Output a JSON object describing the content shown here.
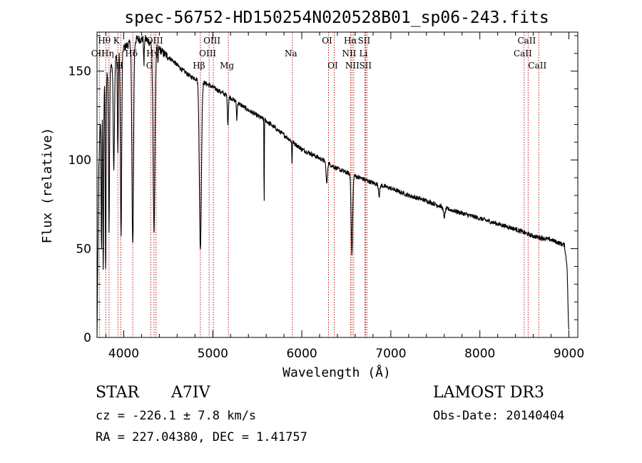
{
  "chart_data": {
    "type": "line",
    "title": "spec-56752-HD150254N020528B01_sp06-243.fits",
    "xlabel": "Wavelength (Å)",
    "ylabel": "Flux (relative)",
    "xlim": [
      3700,
      9100
    ],
    "ylim": [
      0,
      172
    ],
    "xticks": [
      4000,
      5000,
      6000,
      7000,
      8000,
      9000
    ],
    "yticks": [
      0,
      50,
      100,
      150
    ],
    "continuum": [
      [
        3700,
        0
      ],
      [
        3710,
        48
      ],
      [
        3720,
        95
      ],
      [
        3740,
        125
      ],
      [
        3760,
        132
      ],
      [
        3780,
        140
      ],
      [
        3800,
        145
      ],
      [
        3850,
        152
      ],
      [
        3900,
        157
      ],
      [
        3950,
        160
      ],
      [
        4000,
        163
      ],
      [
        4050,
        165
      ],
      [
        4150,
        168
      ],
      [
        4250,
        168
      ],
      [
        4300,
        166
      ],
      [
        4350,
        165
      ],
      [
        4450,
        160
      ],
      [
        4550,
        156
      ],
      [
        4650,
        151
      ],
      [
        4750,
        147
      ],
      [
        4850,
        145
      ],
      [
        5000,
        141
      ],
      [
        5200,
        135
      ],
      [
        5400,
        128
      ],
      [
        5600,
        122
      ],
      [
        5800,
        114
      ],
      [
        6000,
        106
      ],
      [
        6200,
        101
      ],
      [
        6400,
        95
      ],
      [
        6600,
        91
      ],
      [
        6800,
        87
      ],
      [
        7000,
        84
      ],
      [
        7200,
        80
      ],
      [
        7400,
        77
      ],
      [
        7600,
        73
      ],
      [
        7800,
        70
      ],
      [
        8000,
        67
      ],
      [
        8200,
        64
      ],
      [
        8400,
        61
      ],
      [
        8600,
        57
      ],
      [
        8800,
        55
      ],
      [
        8900,
        53
      ],
      [
        8950,
        52
      ],
      [
        8980,
        40
      ],
      [
        8995,
        8
      ],
      [
        9000,
        2
      ]
    ],
    "absorption": [
      [
        3750,
        80,
        6
      ],
      [
        3770,
        100,
        6
      ],
      [
        3797,
        110,
        6
      ],
      [
        3835,
        90,
        8
      ],
      [
        3889,
        60,
        10
      ],
      [
        3934,
        55,
        7
      ],
      [
        3970,
        105,
        10
      ],
      [
        4101,
        115,
        13
      ],
      [
        4227,
        15,
        5
      ],
      [
        4340,
        105,
        15
      ],
      [
        4384,
        10,
        5
      ],
      [
        4861,
        95,
        16
      ],
      [
        5170,
        15,
        8
      ],
      [
        5270,
        10,
        6
      ],
      [
        5577,
        50,
        3
      ],
      [
        5890,
        12,
        4
      ],
      [
        6280,
        12,
        10
      ],
      [
        6563,
        45,
        12
      ],
      [
        6870,
        6,
        10
      ],
      [
        7600,
        5,
        14
      ]
    ],
    "lines": [
      {
        "name": "OII",
        "wl": 3727,
        "row": "b"
      },
      {
        "name": "Hθ",
        "wl": 3798,
        "row": "t"
      },
      {
        "name": "Hη",
        "wl": 3835,
        "row": "b"
      },
      {
        "name": "K",
        "wl": 3934,
        "row": "t"
      },
      {
        "name": "H",
        "wl": 3968,
        "row": "c"
      },
      {
        "name": "Hδ",
        "wl": 4102,
        "row": "b"
      },
      {
        "name": "G",
        "wl": 4305,
        "row": "c"
      },
      {
        "name": "Hγ",
        "wl": 4341,
        "row": "b"
      },
      {
        "name": "OIII",
        "wl": 4363,
        "row": "t"
      },
      {
        "name": "Hβ",
        "wl": 4861,
        "row": "c"
      },
      {
        "name": "OIII",
        "wl": 4959,
        "row": "b"
      },
      {
        "name": "OIII",
        "wl": 5007,
        "row": "t"
      },
      {
        "name": "Mg",
        "wl": 5175,
        "row": "c"
      },
      {
        "name": "Na",
        "wl": 5894,
        "row": "b"
      },
      {
        "name": "OI",
        "wl": 6300,
        "row": "t"
      },
      {
        "name": "OI",
        "wl": 6364,
        "row": "c"
      },
      {
        "name": "NII",
        "wl": 6548,
        "row": "b"
      },
      {
        "name": "Hα",
        "wl": 6563,
        "row": "t"
      },
      {
        "name": "NII",
        "wl": 6583,
        "row": "c"
      },
      {
        "name": "Li",
        "wl": 6708,
        "row": "b"
      },
      {
        "name": "SII",
        "wl": 6716,
        "row": "t"
      },
      {
        "name": "SII",
        "wl": 6731,
        "row": "c"
      },
      {
        "name": "CaII",
        "wl": 8498,
        "row": "b"
      },
      {
        "name": "CaII",
        "wl": 8542,
        "row": "t"
      },
      {
        "name": "CaII",
        "wl": 8662,
        "row": "c"
      }
    ]
  },
  "info": {
    "class": "STAR",
    "subclass": "A7IV",
    "survey": "LAMOST DR3",
    "cz": "cz = -226.1 ± 7.8 km/s",
    "obsdate": "Obs-Date: 20140404",
    "radec": "RA = 227.04380, DEC =   1.41757"
  },
  "colors": {
    "spectrum": "#000000",
    "lines": "#b00000",
    "axis": "#000000"
  }
}
